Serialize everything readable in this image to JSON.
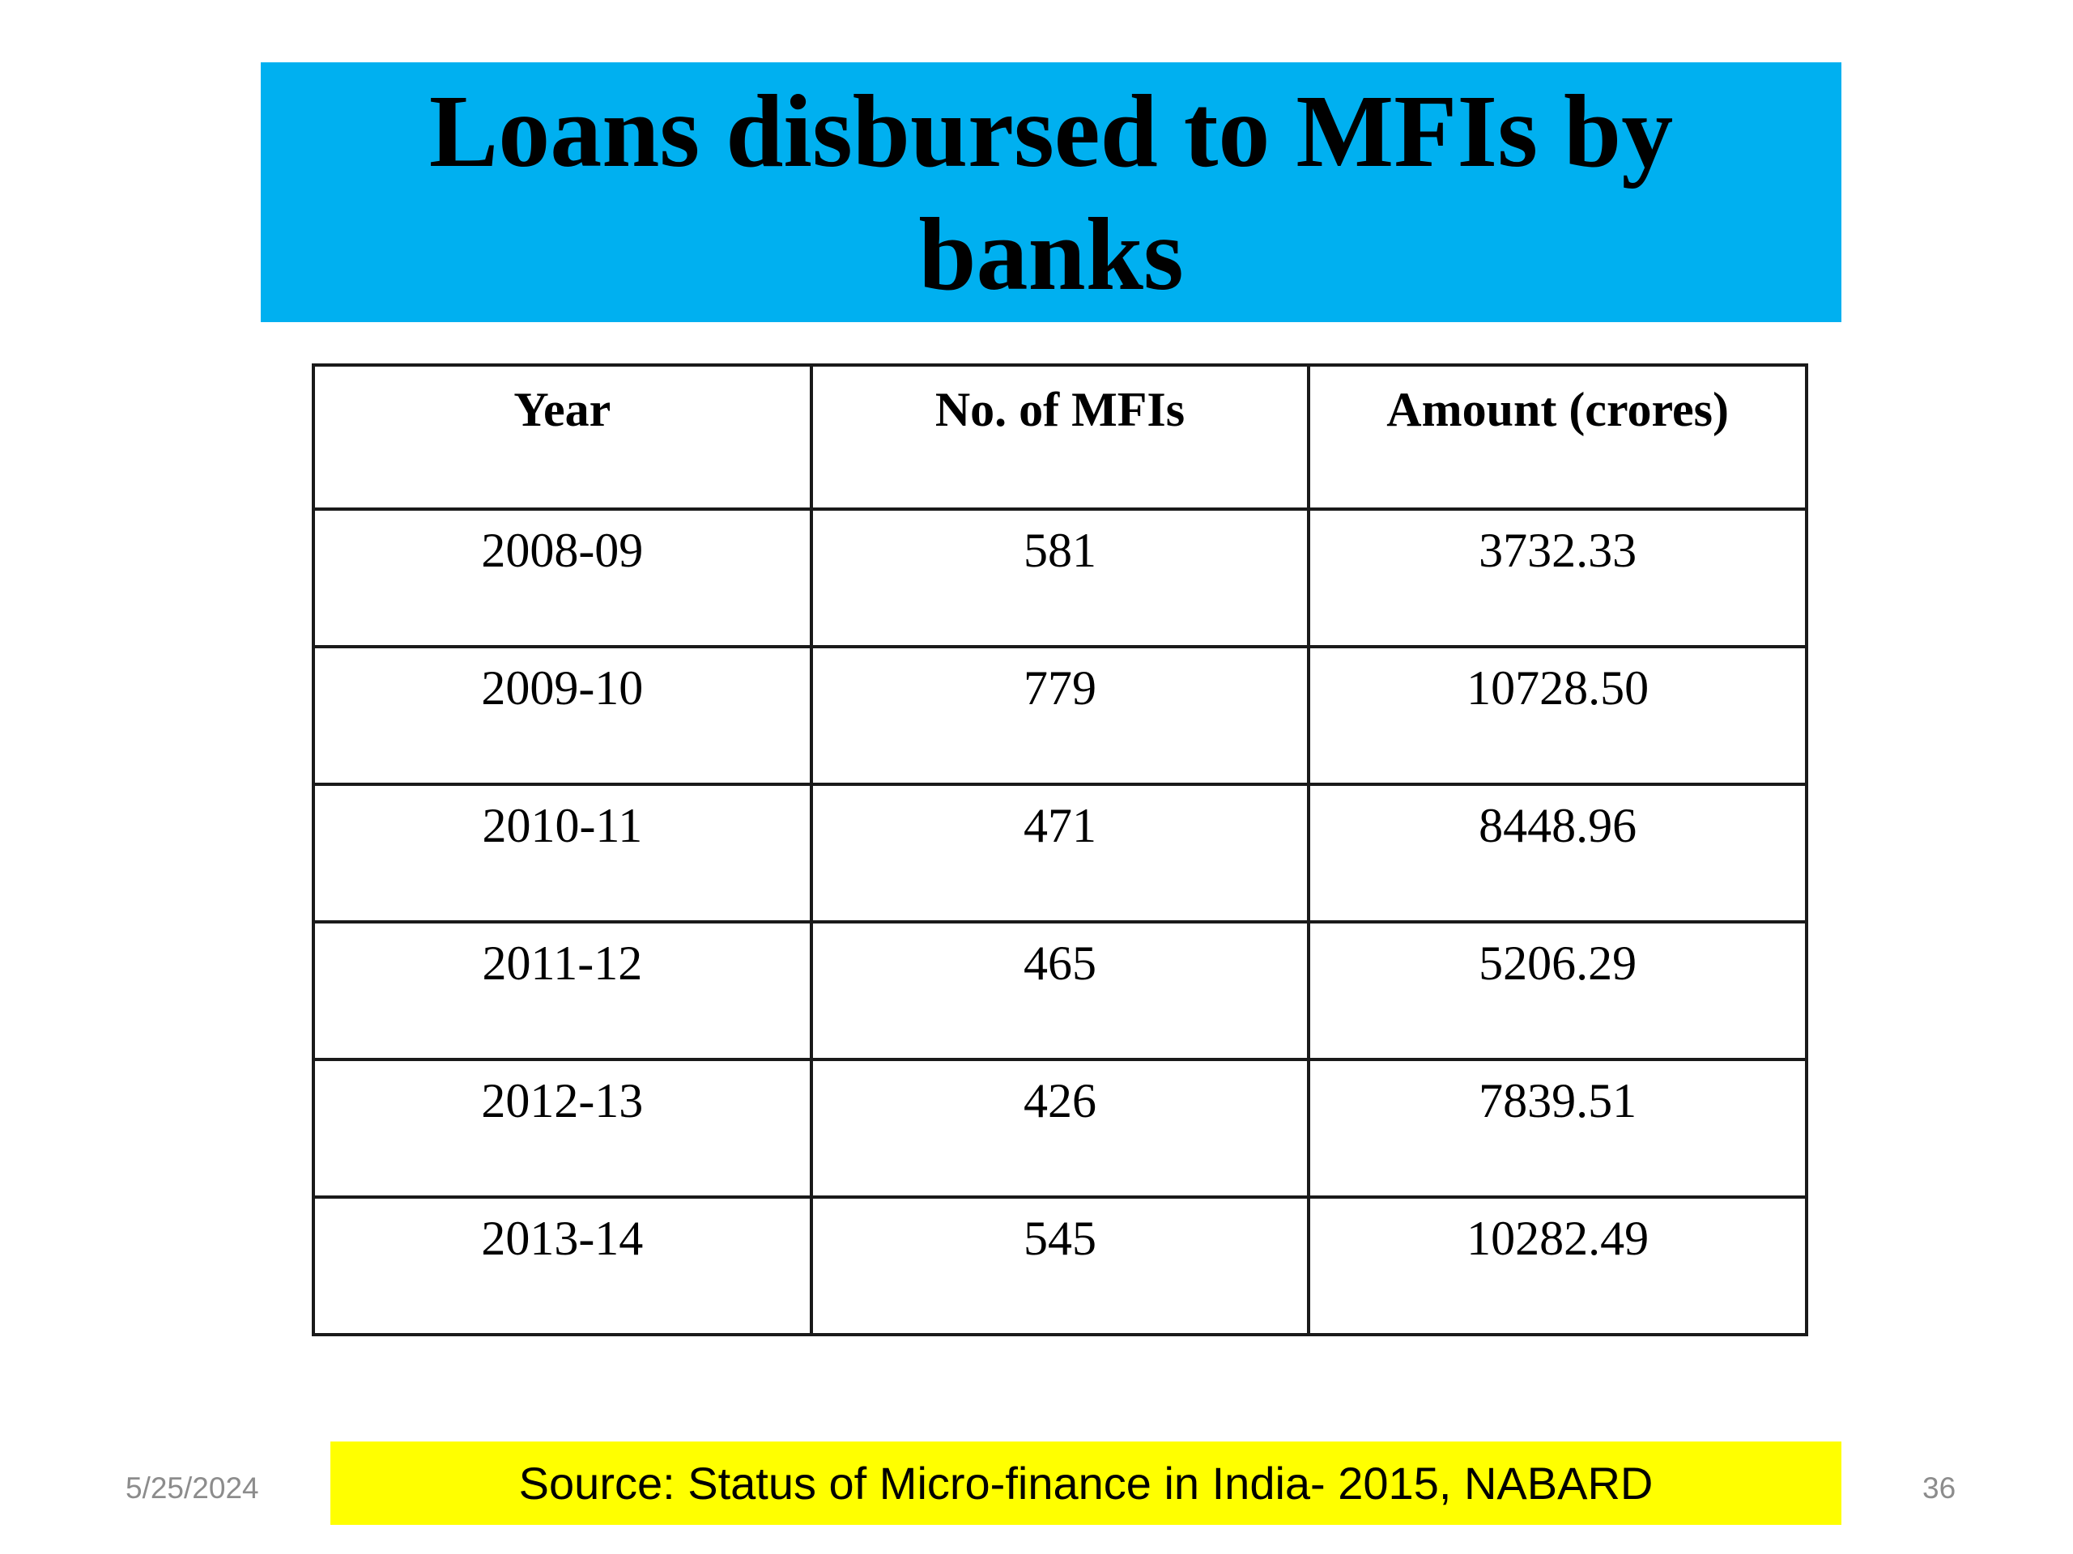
{
  "slide": {
    "title": "Loans disbursed to MFIs by banks",
    "source": "Source: Status of Micro-finance in India- 2015, NABARD",
    "date": "5/25/2024",
    "page_number": "36",
    "colors": {
      "title_background": "#00b0f0",
      "source_background": "#ffff00"
    }
  },
  "table": {
    "headers": [
      "Year",
      "No. of MFIs",
      "Amount (crores)"
    ],
    "rows": [
      [
        "2008-09",
        "581",
        "3732.33"
      ],
      [
        "2009-10",
        "779",
        "10728.50"
      ],
      [
        "2010-11",
        "471",
        "8448.96"
      ],
      [
        "2011-12",
        "465",
        "5206.29"
      ],
      [
        "2012-13",
        "426",
        "7839.51"
      ],
      [
        "2013-14",
        "545",
        "10282.49"
      ]
    ]
  }
}
